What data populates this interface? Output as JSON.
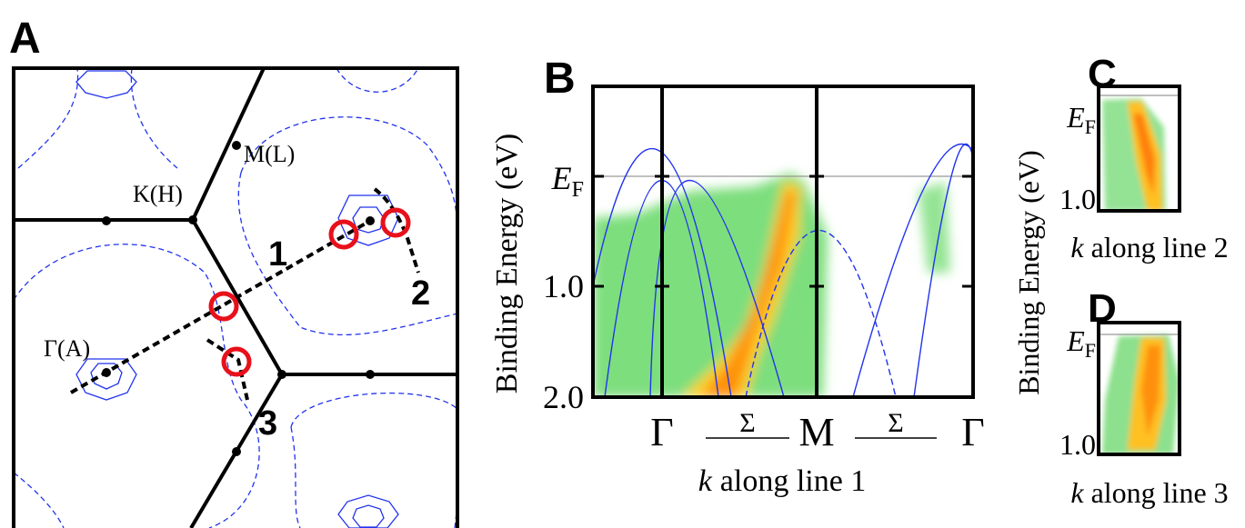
{
  "panel_a": {
    "label": "A",
    "points": [
      "M(L)",
      "K(H)",
      "Γ(A)"
    ],
    "lines": [
      "1",
      "2",
      "3"
    ]
  },
  "panel_b": {
    "label": "B",
    "y_label": "Binding Energy (eV)",
    "y_ticks": [
      {
        "main": "E",
        "sub": "F"
      },
      "1.0",
      "2.0"
    ],
    "x_labels": [
      "Γ",
      "Σ",
      "M",
      "Σ",
      "Γ"
    ],
    "x_label": {
      "variable": "k",
      "text": "along line 1"
    }
  },
  "panel_c": {
    "label": "C",
    "y_ticks": [
      {
        "main": "E",
        "sub": "F"
      },
      "1.0"
    ],
    "x_label": {
      "variable": "k",
      "text": "along line 2"
    }
  },
  "panel_d": {
    "label": "D",
    "y_ticks": [
      {
        "main": "E",
        "sub": "F"
      },
      "1.0"
    ],
    "x_label": {
      "variable": "k",
      "text": "along line 3"
    }
  },
  "shared_y_label": "Binding Energy (eV)"
}
